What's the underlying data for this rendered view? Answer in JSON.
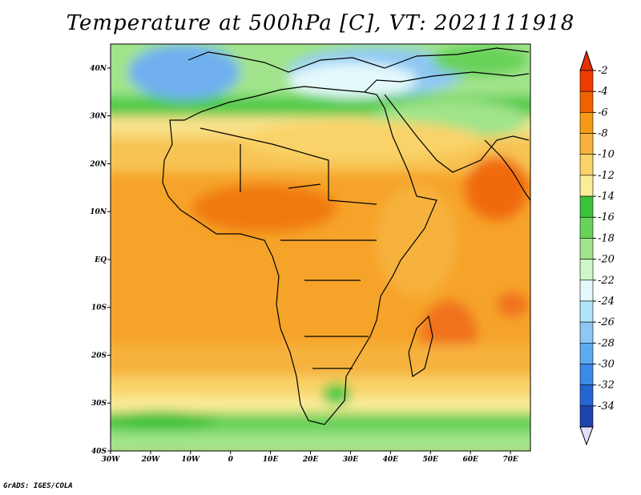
{
  "title": "Temperature at 500hPa [C], VT: 2021111918",
  "credit": "GrADS: IGES/COLA",
  "map": {
    "projection": "latlon",
    "lon_range": [
      -30,
      75
    ],
    "lat_range": [
      -40,
      45
    ],
    "lon_ticks": [
      "30W",
      "20W",
      "10W",
      "0",
      "10E",
      "20E",
      "30E",
      "40E",
      "50E",
      "60E",
      "70E"
    ],
    "lat_ticks": [
      "40N",
      "30N",
      "20N",
      "10N",
      "EQ",
      "10S",
      "20S",
      "30S",
      "40S"
    ]
  },
  "colorbar": {
    "labels": [
      "-2",
      "-4",
      "-6",
      "-8",
      "-10",
      "-12",
      "-14",
      "-16",
      "-18",
      "-20",
      "-22",
      "-24",
      "-26",
      "-28",
      "-30",
      "-32",
      "-34"
    ],
    "colors": [
      "#f03c00",
      "#f06400",
      "#f59a16",
      "#f6b23c",
      "#f9d369",
      "#fbec98",
      "#3cc13c",
      "#69d25a",
      "#a1e48b",
      "#cff6c9",
      "#e4f9fb",
      "#b2e5f8",
      "#8dc8f4",
      "#5eaaf0",
      "#3c8ae7",
      "#2365d4",
      "#1f44b0",
      "#121a79"
    ],
    "top_arrow_color": "#e53000",
    "bottom_arrow_color": "#e0e0f8"
  }
}
